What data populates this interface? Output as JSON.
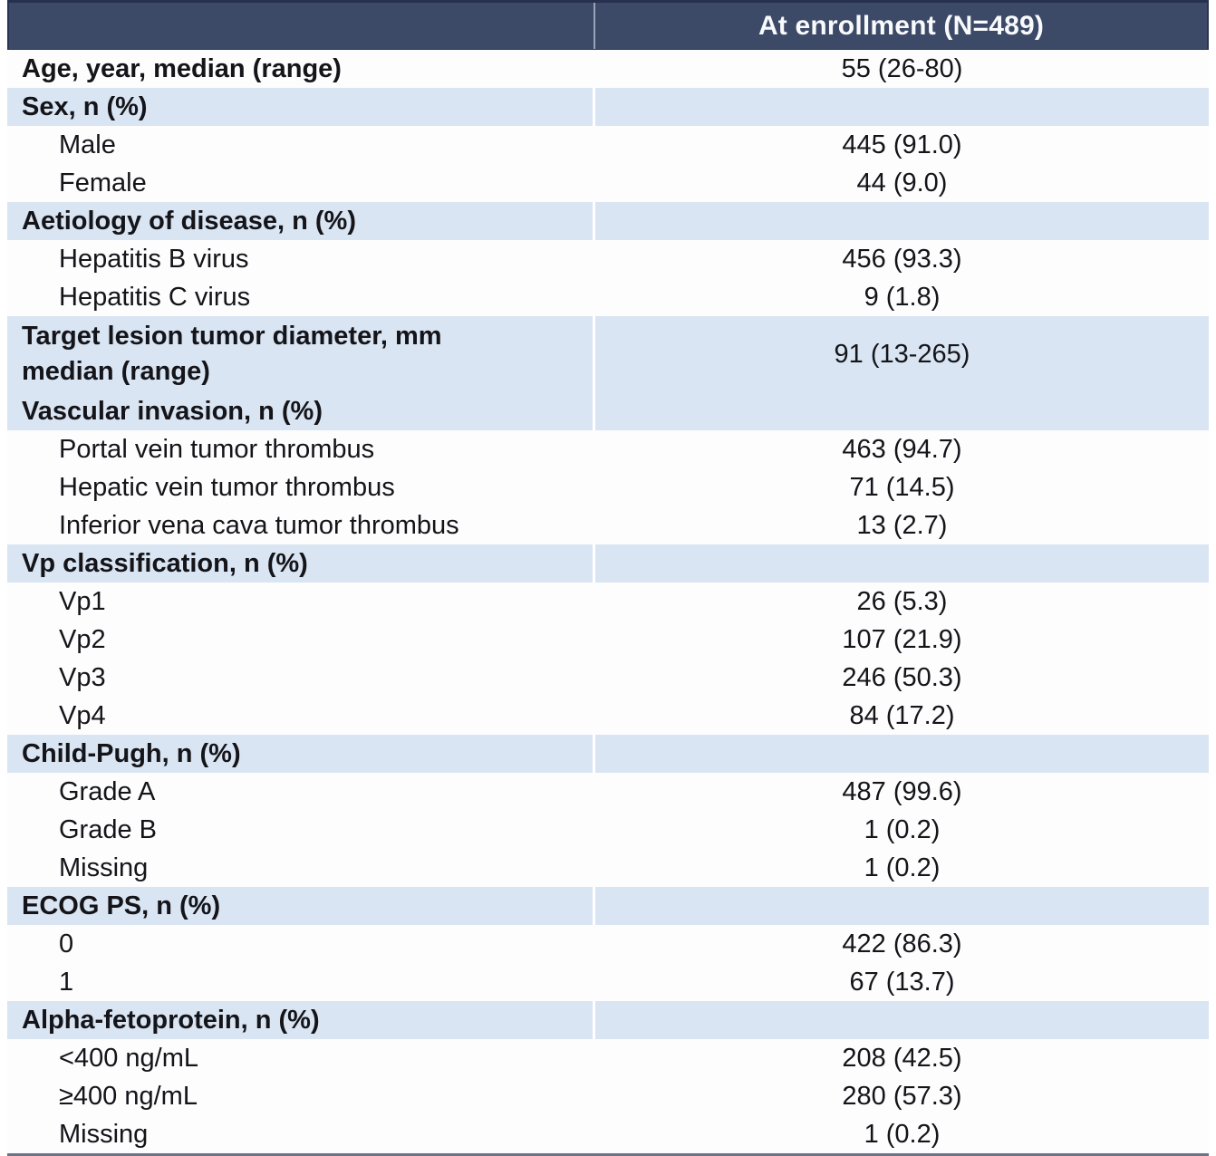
{
  "table": {
    "header": {
      "col1": "",
      "col2": "At enrollment (N=489)"
    },
    "rows": [
      {
        "type": "bold",
        "label": "Age, year, median (range)",
        "value": "55 (26-80)"
      },
      {
        "type": "section",
        "label": "Sex, n (%)",
        "value": ""
      },
      {
        "type": "item",
        "label": "Male",
        "value": "445 (91.0)"
      },
      {
        "type": "item",
        "label": "Female",
        "value": "44 (9.0)"
      },
      {
        "type": "section",
        "label": "Aetiology of disease, n (%)",
        "value": ""
      },
      {
        "type": "item",
        "label": "Hepatitis B virus",
        "value": "456 (93.3)"
      },
      {
        "type": "item",
        "label": "Hepatitis C virus",
        "value": "9 (1.8)"
      },
      {
        "type": "section-tall",
        "label": "Target lesion tumor diameter, mm",
        "label2": "median (range)",
        "value": "91 (13-265)"
      },
      {
        "type": "section",
        "label": "Vascular invasion, n (%)",
        "value": ""
      },
      {
        "type": "item",
        "label": "Portal vein tumor thrombus",
        "value": "463 (94.7)"
      },
      {
        "type": "item",
        "label": "Hepatic vein tumor thrombus",
        "value": "71 (14.5)"
      },
      {
        "type": "item",
        "label": "Inferior vena cava tumor thrombus",
        "value": "13 (2.7)"
      },
      {
        "type": "section",
        "label": "Vp classification, n (%)",
        "value": ""
      },
      {
        "type": "item",
        "label": "Vp1",
        "value": "26 (5.3)"
      },
      {
        "type": "item",
        "label": "Vp2",
        "value": "107 (21.9)"
      },
      {
        "type": "item",
        "label": "Vp3",
        "value": "246 (50.3)"
      },
      {
        "type": "item",
        "label": "Vp4",
        "value": "84 (17.2)"
      },
      {
        "type": "section",
        "label": "Child-Pugh, n (%)",
        "value": ""
      },
      {
        "type": "item",
        "label": "Grade A",
        "value": "487 (99.6)"
      },
      {
        "type": "item",
        "label": "Grade B",
        "value": "1 (0.2)"
      },
      {
        "type": "item",
        "label": "Missing",
        "value": "1 (0.2)"
      },
      {
        "type": "section",
        "label": "ECOG PS, n (%)",
        "value": ""
      },
      {
        "type": "item",
        "label": "0",
        "value": "422 (86.3)"
      },
      {
        "type": "item",
        "label": "1",
        "value": "67 (13.7)"
      },
      {
        "type": "section",
        "label": "Alpha-fetoprotein, n (%)",
        "value": ""
      },
      {
        "type": "item",
        "label": "<400 ng/mL",
        "value": "208 (42.5)"
      },
      {
        "type": "item",
        "label": "≥400 ng/mL",
        "value": "280 (57.3)"
      },
      {
        "type": "item",
        "label": "Missing",
        "value": "1 (0.2)"
      }
    ],
    "colors": {
      "header_bg": "#3c4967",
      "header_text": "#f8fafc",
      "section_row_bg": "#d9e5f3",
      "data_row_bg": "#fdfdfe",
      "body_text": "#141419",
      "top_border": "#27304f",
      "bottom_border": "#6b7389"
    }
  }
}
